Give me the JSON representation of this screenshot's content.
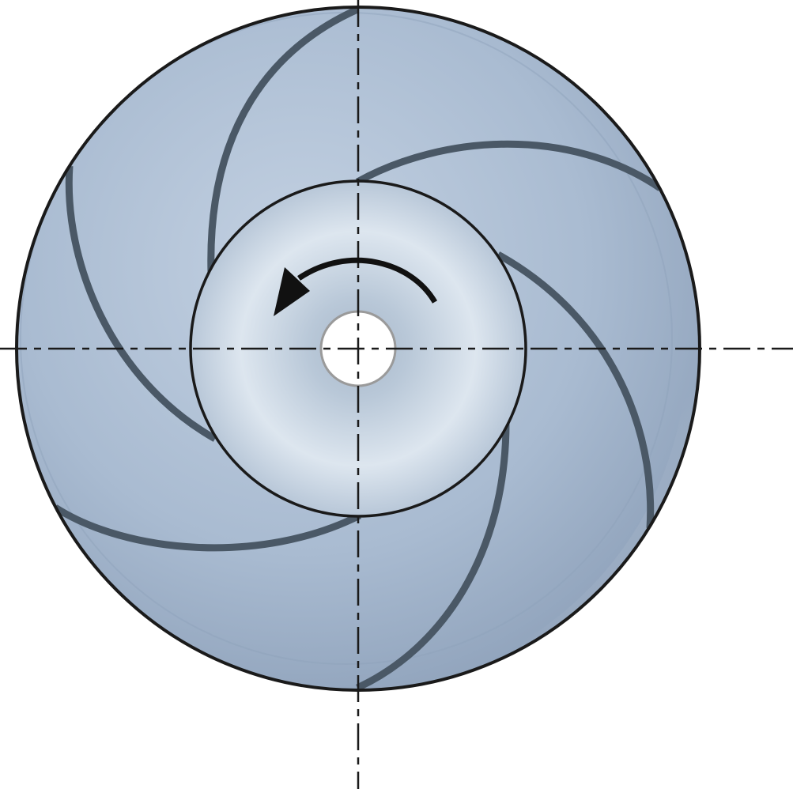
{
  "diagram": {
    "subject": "impeller",
    "blade_count": 6,
    "rotation": "counterclockwise",
    "colors": {
      "outer_disc": "#a9bbd1",
      "outer_disc_light": "#c3d1e2",
      "outer_disc_dark": "#8c9fb8",
      "rim_shadow": "#7f92aa",
      "hub_light": "#dde6ef",
      "hub_dark": "#a8b8ca",
      "blade": "#4a5866",
      "outline": "#1a1a1a",
      "bore": "#ffffff",
      "bore_edge": "#9a9a9a",
      "centerline": "#1a1a1a"
    },
    "icons": {
      "rotation_arrow": "curved-arrow-counterclockwise-icon"
    }
  }
}
